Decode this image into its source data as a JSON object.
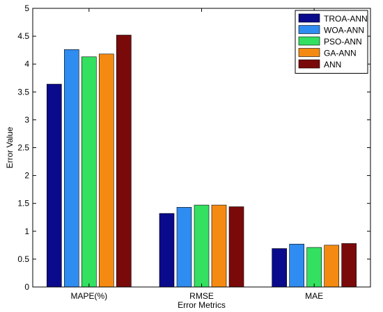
{
  "chart_data": {
    "type": "bar",
    "title": "",
    "xlabel": "Error Metrics",
    "ylabel": "Error Value",
    "ylim": [
      0,
      5
    ],
    "yticks": [
      "0",
      "0.5",
      "1",
      "1.5",
      "2",
      "2.5",
      "3",
      "3.5",
      "4",
      "4.5",
      "5"
    ],
    "grid": false,
    "legend_position": "top-right",
    "categories": [
      "MAPE(%)",
      "RMSE",
      "MAE"
    ],
    "series": [
      {
        "name": "TROA-ANN",
        "color": "#0a0a8c",
        "values": [
          3.64,
          1.32,
          0.69
        ]
      },
      {
        "name": "WOA-ANN",
        "color": "#2f8cf0",
        "values": [
          4.26,
          1.43,
          0.77
        ]
      },
      {
        "name": "PSO-ANN",
        "color": "#33e060",
        "values": [
          4.13,
          1.47,
          0.71
        ]
      },
      {
        "name": "GA-ANN",
        "color": "#f58a12",
        "values": [
          4.18,
          1.47,
          0.75
        ]
      },
      {
        "name": "ANN",
        "color": "#7a0a0a",
        "values": [
          4.52,
          1.44,
          0.78
        ]
      }
    ]
  }
}
